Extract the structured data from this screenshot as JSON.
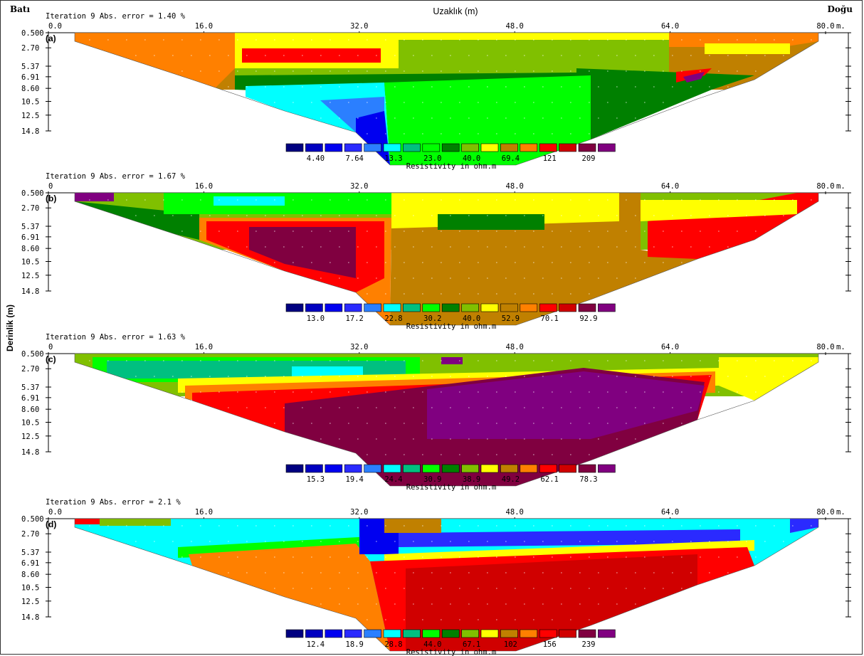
{
  "header": {
    "left_label": "Batı",
    "center_label": "Uzaklık (m)",
    "right_label": "Doğu",
    "y_axis_label": "Derinlik (m)",
    "x_unit": "m."
  },
  "colors": {
    "palette": [
      "#000080",
      "#0000c0",
      "#0000f0",
      "#2a2aff",
      "#2b7fff",
      "#00ffff",
      "#00c080",
      "#00ff00",
      "#008000",
      "#80c000",
      "#ffff00",
      "#c08000",
      "#ff8000",
      "#ff0000",
      "#d00000",
      "#800040",
      "#800080"
    ]
  },
  "chart_data": [
    {
      "type": "heatmap",
      "panel": "(a)",
      "title": "Iteration 9 Abs. error = 1.40 %",
      "x_ticks": [
        "0.0",
        "16.0",
        "32.0",
        "48.0",
        "64.0",
        "80.0"
      ],
      "x_tick_values": [
        0,
        16,
        32,
        48,
        64,
        80
      ],
      "y_ticks": [
        "0.500",
        "2.70",
        "5.37",
        "6.91",
        "8.60",
        "10.5",
        "12.5",
        "14.8"
      ],
      "y_tick_values": [
        0.5,
        2.7,
        5.37,
        6.91,
        8.6,
        10.5,
        12.5,
        14.8
      ],
      "xlim": [
        0,
        80
      ],
      "ylim": [
        0.5,
        14.8
      ],
      "legend_values": [
        "4.40",
        "7.64",
        "13.3",
        "23.0",
        "40.0",
        "69.4",
        "121",
        "209"
      ],
      "legend_title": "Resistivity in ohm.m"
    },
    {
      "type": "heatmap",
      "panel": "(b)",
      "title": "Iteration 9 Abs. error = 1.67 %",
      "x_ticks": [
        "0",
        "16.0",
        "32.0",
        "48.0",
        "64.0",
        "80.0"
      ],
      "x_tick_values": [
        0,
        16,
        32,
        48,
        64,
        80
      ],
      "y_ticks": [
        "0.500",
        "2.70",
        "5.37",
        "6.91",
        "8.60",
        "10.5",
        "12.5",
        "14.8"
      ],
      "y_tick_values": [
        0.5,
        2.7,
        5.37,
        6.91,
        8.6,
        10.5,
        12.5,
        14.8
      ],
      "xlim": [
        0,
        80
      ],
      "ylim": [
        0.5,
        14.8
      ],
      "legend_values": [
        "13.0",
        "17.2",
        "22.8",
        "30.2",
        "40.0",
        "52.9",
        "70.1",
        "92.9"
      ],
      "legend_title": "Resistivity in ohm.m"
    },
    {
      "type": "heatmap",
      "panel": "(c)",
      "title": "Iteration 9 Abs. error = 1.63 %",
      "x_ticks": [
        "0",
        "16.0",
        "32.0",
        "48.0",
        "64.0",
        "80.0"
      ],
      "x_tick_values": [
        0,
        16,
        32,
        48,
        64,
        80
      ],
      "y_ticks": [
        "0.500",
        "2.70",
        "5.37",
        "6.91",
        "8.60",
        "10.5",
        "12.5",
        "14.8"
      ],
      "y_tick_values": [
        0.5,
        2.7,
        5.37,
        6.91,
        8.6,
        10.5,
        12.5,
        14.8
      ],
      "xlim": [
        0,
        80
      ],
      "ylim": [
        0.5,
        14.8
      ],
      "legend_values": [
        "15.3",
        "19.4",
        "24.4",
        "30.9",
        "38.9",
        "49.2",
        "62.1",
        "78.3"
      ],
      "legend_title": "Resistivity in ohm.m"
    },
    {
      "type": "heatmap",
      "panel": "(d)",
      "title": "Iteration 9 Abs. error = 2.1 %",
      "x_ticks": [
        "0.0",
        "16.0",
        "32.0",
        "48.0",
        "64.0",
        "80.0"
      ],
      "x_tick_values": [
        0,
        16,
        32,
        48,
        64,
        80
      ],
      "y_ticks": [
        "0.500",
        "2.70",
        "5.37",
        "6.91",
        "8.60",
        "10.5",
        "12.5",
        "14.8"
      ],
      "y_tick_values": [
        0.5,
        2.7,
        5.37,
        6.91,
        8.6,
        10.5,
        12.5,
        14.8
      ],
      "xlim": [
        0,
        80
      ],
      "ylim": [
        0.5,
        14.8
      ],
      "legend_values": [
        "12.4",
        "18.9",
        "28.8",
        "44.0",
        "67.1",
        "102",
        "156",
        "239"
      ],
      "legend_title": "Resistivity in ohm.m"
    }
  ]
}
